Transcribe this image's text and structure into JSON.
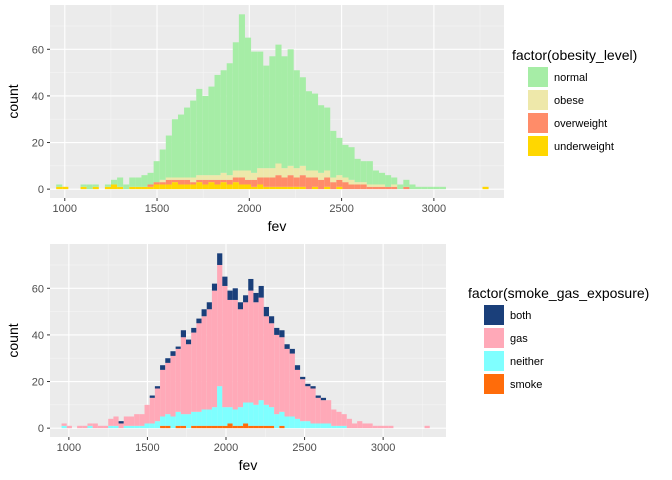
{
  "chart_data": [
    {
      "type": "bar",
      "stacked": true,
      "title": "",
      "xlabel": "fev",
      "ylabel": "count",
      "xlim": [
        920,
        3380
      ],
      "ylim": [
        -3.8,
        79
      ],
      "xticks": [
        1000,
        1500,
        2000,
        2500,
        3000
      ],
      "yticks": [
        0,
        20,
        40,
        60
      ],
      "grid": true,
      "legend_position": "right",
      "legend_title": "factor(obesity_level)",
      "bin_width": 33,
      "bins": [
        970,
        1003,
        1036,
        1069,
        1102,
        1135,
        1168,
        1201,
        1234,
        1267,
        1300,
        1333,
        1366,
        1399,
        1432,
        1465,
        1498,
        1531,
        1564,
        1597,
        1630,
        1663,
        1696,
        1729,
        1762,
        1795,
        1828,
        1861,
        1894,
        1927,
        1960,
        1993,
        2026,
        2059,
        2092,
        2125,
        2158,
        2191,
        2224,
        2257,
        2290,
        2323,
        2356,
        2389,
        2422,
        2455,
        2488,
        2521,
        2554,
        2587,
        2620,
        2653,
        2686,
        2719,
        2752,
        2785,
        2818,
        2851,
        2884,
        2917,
        2950,
        2983,
        3016,
        3049,
        3082,
        3115,
        3148,
        3181,
        3214,
        3247,
        3280
      ],
      "series": [
        {
          "name": "underweight",
          "color": "#FFD700",
          "values": [
            1,
            1,
            0,
            0,
            1,
            0,
            1,
            0,
            1,
            2,
            1,
            0,
            1,
            1,
            1,
            1,
            2,
            2,
            2,
            3,
            2,
            2,
            2,
            3,
            2,
            3,
            2,
            3,
            2,
            3,
            2,
            2,
            1,
            2,
            1,
            1,
            1,
            1,
            1,
            1,
            1,
            0,
            1,
            0,
            1,
            0,
            1,
            0,
            0,
            0,
            0,
            0,
            0,
            0,
            0,
            0,
            0,
            0,
            0,
            0,
            0,
            0,
            0,
            0,
            0,
            0,
            0,
            0,
            0,
            0,
            1
          ]
        },
        {
          "name": "overweight",
          "color": "#FF8C69",
          "values": [
            0,
            0,
            0,
            0,
            0,
            0,
            0,
            0,
            0,
            0,
            0,
            0,
            0,
            0,
            0,
            1,
            1,
            1,
            2,
            1,
            2,
            2,
            1,
            1,
            2,
            1,
            2,
            1,
            2,
            2,
            3,
            2,
            3,
            3,
            4,
            4,
            5,
            4,
            5,
            4,
            5,
            5,
            4,
            4,
            4,
            3,
            3,
            3,
            2,
            2,
            2,
            1,
            1,
            1,
            1,
            1,
            0,
            1,
            0,
            0,
            0,
            0,
            0,
            0,
            0,
            0,
            0,
            0,
            0,
            0,
            0
          ]
        },
        {
          "name": "obese",
          "color": "#EEE8AA",
          "values": [
            0,
            0,
            0,
            0,
            0,
            0,
            0,
            0,
            0,
            0,
            0,
            0,
            0,
            0,
            0,
            0,
            0,
            1,
            1,
            1,
            1,
            1,
            2,
            2,
            2,
            2,
            2,
            3,
            2,
            3,
            3,
            4,
            3,
            4,
            4,
            4,
            5,
            4,
            4,
            4,
            4,
            3,
            3,
            3,
            3,
            2,
            2,
            2,
            2,
            1,
            1,
            1,
            1,
            1,
            0,
            1,
            0,
            0,
            0,
            0,
            0,
            0,
            0,
            0,
            0,
            0,
            0,
            0,
            0,
            0,
            0
          ]
        },
        {
          "name": "normal",
          "color": "#A6EDA6",
          "values": [
            1,
            0,
            0,
            0,
            1,
            2,
            1,
            0,
            1,
            2,
            4,
            2,
            4,
            4,
            5,
            5,
            9,
            13,
            18,
            25,
            27,
            30,
            33,
            37,
            34,
            38,
            43,
            44,
            48,
            55,
            67,
            57,
            52,
            50,
            44,
            48,
            51,
            48,
            50,
            42,
            38,
            34,
            33,
            29,
            27,
            20,
            16,
            14,
            14,
            10,
            9,
            10,
            6,
            5,
            5,
            3,
            2,
            3,
            2,
            1,
            1,
            1,
            1,
            1,
            0,
            0,
            0,
            0,
            0,
            0,
            0
          ]
        }
      ]
    },
    {
      "type": "bar",
      "stacked": true,
      "title": "",
      "xlabel": "fev",
      "ylabel": "count",
      "xlim": [
        880,
        3400
      ],
      "ylim": [
        -3.8,
        79
      ],
      "xticks": [
        1000,
        1500,
        2000,
        2500,
        3000
      ],
      "yticks": [
        0,
        20,
        40,
        60
      ],
      "grid": true,
      "legend_position": "right",
      "legend_title": "factor(smoke_gas_exposure)",
      "bin_width": 33,
      "bins": [
        970,
        1003,
        1036,
        1069,
        1102,
        1135,
        1168,
        1201,
        1234,
        1267,
        1300,
        1333,
        1366,
        1399,
        1432,
        1465,
        1498,
        1531,
        1564,
        1597,
        1630,
        1663,
        1696,
        1729,
        1762,
        1795,
        1828,
        1861,
        1894,
        1927,
        1960,
        1993,
        2026,
        2059,
        2092,
        2125,
        2158,
        2191,
        2224,
        2257,
        2290,
        2323,
        2356,
        2389,
        2422,
        2455,
        2488,
        2521,
        2554,
        2587,
        2620,
        2653,
        2686,
        2719,
        2752,
        2785,
        2818,
        2851,
        2884,
        2917,
        2950,
        2983,
        3016,
        3049,
        3082,
        3115,
        3148,
        3181,
        3214,
        3247,
        3280
      ],
      "series": [
        {
          "name": "smoke",
          "color": "#FF6C0A",
          "values": [
            0,
            0,
            0,
            0,
            0,
            0,
            0,
            0,
            0,
            0,
            0,
            0,
            0,
            0,
            0,
            0,
            0,
            0,
            0,
            1,
            1,
            0,
            1,
            1,
            0,
            1,
            1,
            1,
            1,
            1,
            1,
            1,
            2,
            1,
            1,
            2,
            1,
            1,
            1,
            1,
            1,
            0,
            1,
            0,
            0,
            0,
            0,
            0,
            0,
            0,
            0,
            0,
            0,
            0,
            0,
            0,
            0,
            0,
            0,
            0,
            0,
            0,
            0,
            0,
            0,
            0,
            0,
            0,
            0,
            0,
            0
          ]
        },
        {
          "name": "neither",
          "color": "#7FFFFF",
          "values": [
            1,
            0,
            0,
            0,
            0,
            1,
            0,
            0,
            0,
            1,
            1,
            0,
            1,
            1,
            1,
            1,
            2,
            2,
            3,
            4,
            5,
            5,
            6,
            5,
            6,
            6,
            6,
            7,
            7,
            8,
            17,
            8,
            7,
            7,
            8,
            9,
            10,
            9,
            11,
            9,
            8,
            6,
            6,
            5,
            5,
            4,
            3,
            3,
            2,
            2,
            2,
            2,
            1,
            1,
            1,
            0,
            0,
            0,
            0,
            0,
            0,
            0,
            0,
            0,
            0,
            0,
            0,
            0,
            0,
            0,
            0
          ]
        },
        {
          "name": "gas",
          "color": "#FFA9B8",
          "values": [
            1,
            1,
            0,
            1,
            1,
            1,
            2,
            1,
            1,
            3,
            4,
            2,
            4,
            4,
            5,
            5,
            8,
            11,
            14,
            20,
            22,
            26,
            27,
            33,
            30,
            34,
            38,
            40,
            43,
            50,
            52,
            52,
            46,
            47,
            42,
            43,
            48,
            44,
            44,
            38,
            36,
            34,
            32,
            29,
            27,
            21,
            18,
            15,
            15,
            11,
            10,
            10,
            7,
            6,
            5,
            4,
            2,
            3,
            2,
            2,
            1,
            1,
            1,
            1,
            0,
            0,
            0,
            0,
            0,
            0,
            1
          ]
        },
        {
          "name": "both",
          "color": "#1A3F7A",
          "values": [
            0,
            0,
            0,
            0,
            0,
            0,
            0,
            0,
            0,
            0,
            0,
            1,
            0,
            0,
            0,
            0,
            0,
            1,
            1,
            2,
            2,
            2,
            1,
            3,
            2,
            2,
            2,
            3,
            3,
            3,
            5,
            4,
            4,
            5,
            3,
            3,
            5,
            4,
            5,
            4,
            3,
            3,
            3,
            2,
            2,
            2,
            1,
            1,
            1,
            1,
            1,
            0,
            0,
            0,
            0,
            0,
            0,
            0,
            0,
            0,
            0,
            0,
            0,
            0,
            0,
            0,
            0,
            0,
            0,
            0,
            0
          ]
        }
      ]
    }
  ]
}
